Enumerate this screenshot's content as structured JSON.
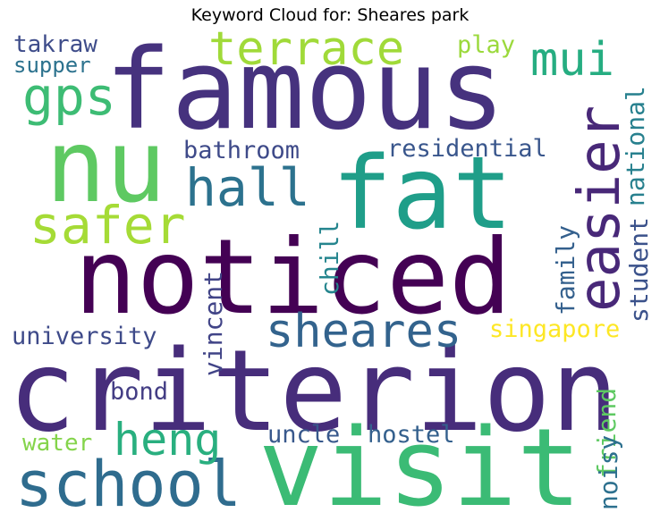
{
  "title": "Keyword Cloud for: Sheares park",
  "words": {
    "criterion": {
      "text": "criterion",
      "color": "#472d7b"
    },
    "noticed": {
      "text": "noticed",
      "color": "#440154"
    },
    "famous": {
      "text": "famous",
      "color": "#46327e"
    },
    "visit": {
      "text": "visit",
      "color": "#3bbb75"
    },
    "nu": {
      "text": "nu",
      "color": "#5ec962"
    },
    "fat": {
      "text": "fat",
      "color": "#1f9e89"
    },
    "school": {
      "text": "school",
      "color": "#2f6c8e"
    },
    "easier": {
      "text": "easier",
      "color": "#482878"
    },
    "terrace": {
      "text": "terrace",
      "color": "#a0da39"
    },
    "sheares": {
      "text": "sheares",
      "color": "#33638d"
    },
    "heng": {
      "text": "heng",
      "color": "#29af7f"
    },
    "hall": {
      "text": "hall",
      "color": "#2c728e"
    },
    "safer": {
      "text": "safer",
      "color": "#a5db36"
    },
    "gps": {
      "text": "gps",
      "color": "#3dbc74"
    },
    "mui": {
      "text": "mui",
      "color": "#26ad81"
    },
    "residential": {
      "text": "residential",
      "color": "#39568c"
    },
    "bathroom": {
      "text": "bathroom",
      "color": "#3e4a89"
    },
    "takraw": {
      "text": "takraw",
      "color": "#3e4c8a"
    },
    "supper": {
      "text": "supper",
      "color": "#2c728e"
    },
    "play": {
      "text": "play",
      "color": "#9bd93c"
    },
    "national": {
      "text": "national",
      "color": "#27808e"
    },
    "university": {
      "text": "university",
      "color": "#3e4a89"
    },
    "singapore": {
      "text": "singapore",
      "color": "#fde725"
    },
    "vincent": {
      "text": "vincent",
      "color": "#414487"
    },
    "chill": {
      "text": "chill",
      "color": "#25858e"
    },
    "family": {
      "text": "family",
      "color": "#34608d"
    },
    "student": {
      "text": "student",
      "color": "#3b528b"
    },
    "bond": {
      "text": "bond",
      "color": "#433d84"
    },
    "uncle": {
      "text": "uncle",
      "color": "#38588c"
    },
    "hostel": {
      "text": "hostel",
      "color": "#34608d"
    },
    "water": {
      "text": "water",
      "color": "#84d44b"
    },
    "friend": {
      "text": "friend",
      "color": "#5ec962"
    },
    "noisy": {
      "text": "noisy",
      "color": "#2d708e"
    }
  }
}
